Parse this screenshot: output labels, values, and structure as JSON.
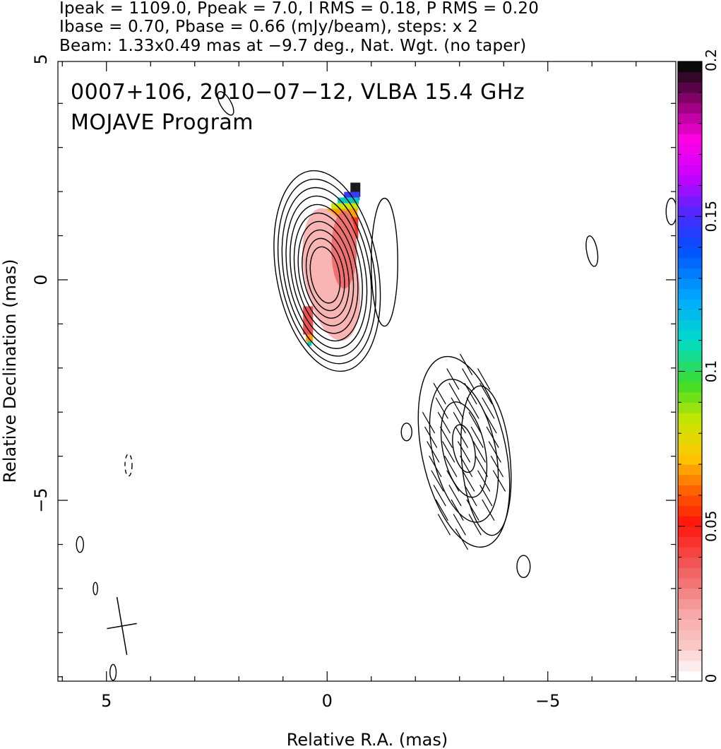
{
  "header": {
    "line1": "Ipeak = 1109.0, Ppeak = 7.0, I RMS = 0.18, P RMS = 0.20",
    "line2": "Ibase = 0.70, Pbase = 0.66 (mJy/beam), steps: x 2",
    "line3": "Beam: 1.33x0.49 mas at −9.7 deg., Nat. Wgt. (no taper)"
  },
  "annotation": {
    "line1": "0007+106, 2010−07−12, VLBA 15.4 GHz",
    "line2": "MOJAVE Program"
  },
  "chart_data": {
    "type": "contour",
    "xlabel": "Relative R.A. (mas)",
    "ylabel": "Relative Declination (mas)",
    "xlim": [
      6.1,
      -7.9
    ],
    "ylim": [
      -9.1,
      4.95
    ],
    "xticks": [
      {
        "value": 5,
        "label": "5"
      },
      {
        "value": 0,
        "label": "0"
      },
      {
        "value": -5,
        "label": "−5"
      }
    ],
    "yticks": [
      {
        "value": 5,
        "label": "5"
      },
      {
        "value": 0,
        "label": "0"
      },
      {
        "value": -5,
        "label": "−5"
      }
    ],
    "colorbar": {
      "min": 0,
      "max": 0.2,
      "ticks": [
        {
          "value": 0,
          "label": "0"
        },
        {
          "value": 0.05,
          "label": "0.05"
        },
        {
          "value": 0.1,
          "label": "0.1"
        },
        {
          "value": 0.15,
          "label": "0.15"
        },
        {
          "value": 0.2,
          "label": "0.2"
        }
      ]
    },
    "core": {
      "x": 0,
      "y": 0.2,
      "a": 1.0,
      "b": 0.55,
      "angle": -10,
      "nlevels": 10
    },
    "jet": {
      "x": -3.1,
      "y": -3.9,
      "a": 2.2,
      "b": 0.95,
      "angle": -12,
      "nlevels": 4
    },
    "small_contours": [
      {
        "x": -7.8,
        "y": 1.55,
        "a": 0.3,
        "b": 0.12,
        "angle": 0
      },
      {
        "x": -6.0,
        "y": 0.65,
        "a": 0.35,
        "b": 0.12,
        "angle": -10
      },
      {
        "x": -1.8,
        "y": -3.45,
        "a": 0.2,
        "b": 0.12,
        "angle": 0
      },
      {
        "x": -4.45,
        "y": -6.5,
        "a": 0.25,
        "b": 0.15,
        "angle": 0
      },
      {
        "x": 2.3,
        "y": 4.0,
        "a": 0.3,
        "b": 0.12,
        "angle": -30
      },
      {
        "x": 4.5,
        "y": -4.2,
        "a": 0.25,
        "b": 0.08,
        "angle": 0
      },
      {
        "x": 5.6,
        "y": -6.0,
        "a": 0.18,
        "b": 0.08,
        "angle": 0
      },
      {
        "x": 5.25,
        "y": -7.0,
        "a": 0.14,
        "b": 0.05,
        "angle": 0
      },
      {
        "x": 4.85,
        "y": -8.9,
        "a": 0.18,
        "b": 0.07,
        "angle": 0
      }
    ],
    "beam": {
      "x": 4.65,
      "y": -7.85,
      "major": 1.33,
      "minor": 0.49,
      "angle": -9.7
    }
  }
}
